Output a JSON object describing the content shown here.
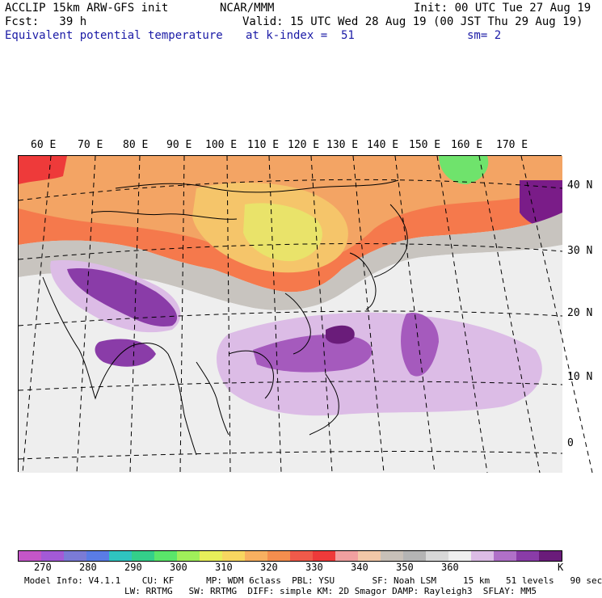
{
  "header": {
    "line1_left": "ACCLIP 15km ARW-GFS init",
    "line1_center": "NCAR/MMM",
    "line1_right": "Init: 00 UTC Tue 27 Aug 19",
    "line2_left": "Fcst:   39 h",
    "line2_right": "Valid: 15 UTC Wed 28 Aug 19 (00 JST Thu 29 Aug 19)",
    "field_name": "Equivalent potential temperature",
    "field_level": "at k-index =  51",
    "smoothing": "sm= 2"
  },
  "map": {
    "lon_labels": [
      "60 E",
      "70 E",
      "80 E",
      "90 E",
      "100 E",
      "110 E",
      "120 E",
      "130 E",
      "140 E",
      "150 E",
      "160 E",
      "170 E"
    ],
    "lat_labels": [
      "40 N",
      "30 N",
      "20 N",
      "10 N",
      "0"
    ]
  },
  "colorbar": {
    "colors": [
      "#c456c8",
      "#a35ad6",
      "#7b7bd6",
      "#5a7ce6",
      "#2fc4c0",
      "#34cf8a",
      "#5ae66a",
      "#a0ee5a",
      "#e8ee5a",
      "#f8d660",
      "#f8b060",
      "#f48e4e",
      "#f05a4a",
      "#ee3a3a",
      "#f0a0a0",
      "#f2c8a8",
      "#c8c0b8",
      "#b4b4b4",
      "#d8d8d8",
      "#eeeeee",
      "#dcbce6",
      "#b070c8",
      "#8a3ca8",
      "#6a1c7a"
    ],
    "tick_labels": [
      "270",
      "280",
      "290",
      "300",
      "310",
      "320",
      "330",
      "340",
      "350",
      "360"
    ],
    "unit": "K"
  },
  "footer": {
    "line1": "Model Info: V4.1.1    CU: KF      MP: WDM 6class  PBL: YSU       SF: Noah LSM     15 km   51 levels   90 sec",
    "line2": "LW: RRTMG   SW: RRTMG  DIFF: simple KM: 2D Smagor DAMP: Rayleigh3  SFLAY: MM5"
  }
}
